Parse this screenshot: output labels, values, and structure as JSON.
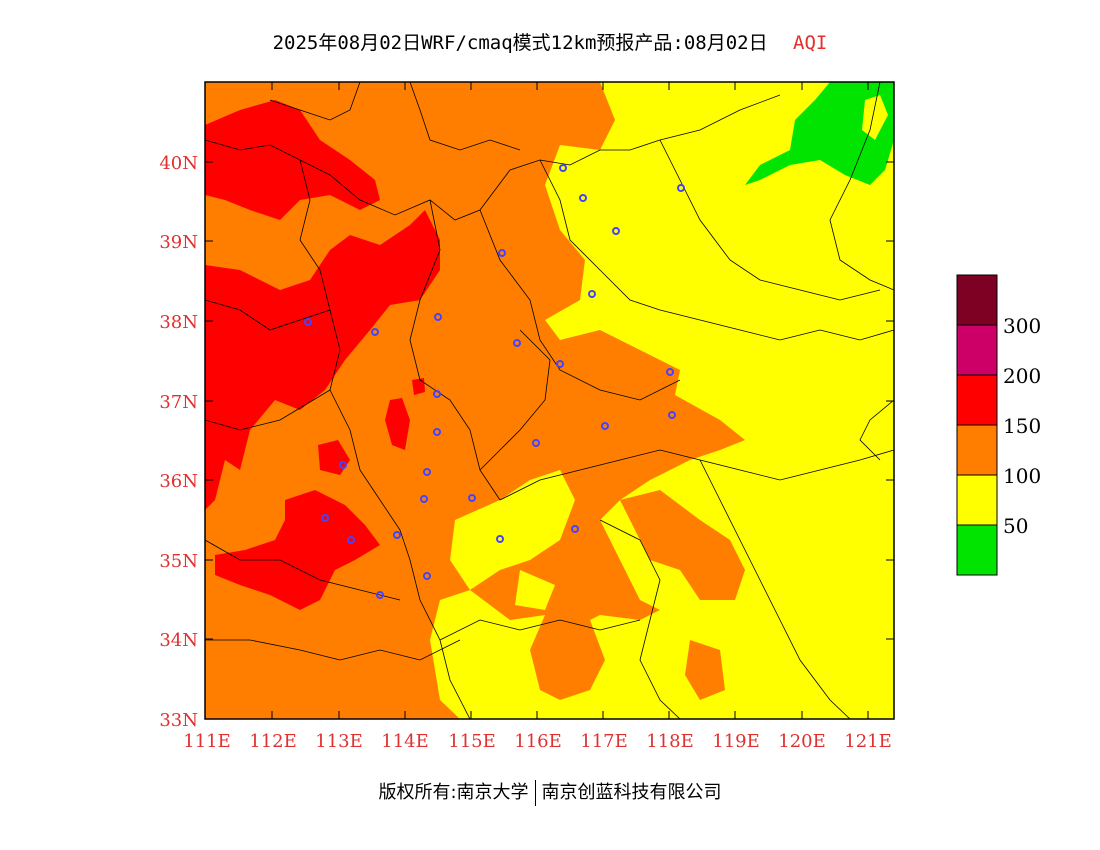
{
  "title": {
    "main": "2025年08月02日WRF/cmaq模式12km预报产品:08月02日",
    "variable": "AQI"
  },
  "map": {
    "lat_labels": [
      "40N",
      "39N",
      "38N",
      "37N",
      "36N",
      "35N",
      "34N",
      "33N"
    ],
    "lon_labels": [
      "111E",
      "112E",
      "113E",
      "114E",
      "115E",
      "116E",
      "117E",
      "118E",
      "119E",
      "120E",
      "121E"
    ],
    "colors": {
      "good": "#00e400",
      "moderate": "#ffff00",
      "usg": "#ff7e00",
      "unhealthy": "#ff0000",
      "very_unhealthy": "#cc0066",
      "hazardous": "#7e0023",
      "station": "#4444ff",
      "axis_label": "#e03030"
    }
  },
  "legend": {
    "ticks": [
      "50",
      "100",
      "150",
      "200",
      "300"
    ],
    "colors": [
      "#00e400",
      "#ffff00",
      "#ff7e00",
      "#ff0000",
      "#cc0066",
      "#7e0023"
    ]
  },
  "footer": {
    "left": "版权所有:南京大学",
    "right": "南京创蓝科技有限公司"
  }
}
